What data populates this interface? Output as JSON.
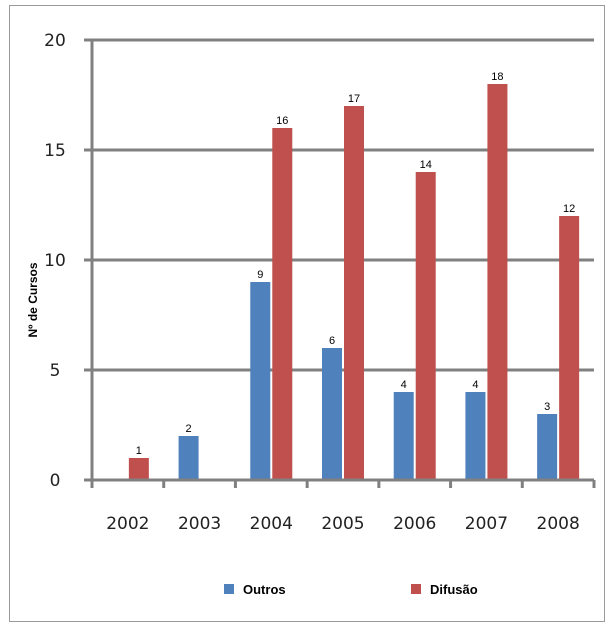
{
  "chart_data": {
    "type": "bar",
    "categories": [
      "2002",
      "2003",
      "2004",
      "2005",
      "2006",
      "2007",
      "2008"
    ],
    "series": [
      {
        "name": "Outros",
        "color": "#4f81bd",
        "values": [
          0,
          2,
          9,
          6,
          4,
          4,
          3
        ]
      },
      {
        "name": "Difusão",
        "color": "#c0504d",
        "values": [
          1,
          0,
          16,
          17,
          14,
          18,
          12
        ]
      }
    ],
    "ylabel": "Nº de Cursos",
    "ylim": [
      0,
      20
    ],
    "yticks": [
      0,
      5,
      10,
      15,
      20
    ],
    "grid": true,
    "legend": "bottom"
  }
}
